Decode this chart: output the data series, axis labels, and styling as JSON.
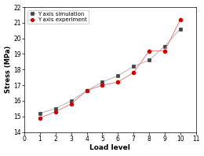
{
  "x": [
    1,
    2,
    3,
    4,
    5,
    6,
    7,
    8,
    9,
    10
  ],
  "simulation": [
    15.2,
    15.5,
    16.0,
    16.65,
    17.2,
    17.6,
    18.2,
    18.6,
    19.5,
    20.6
  ],
  "experiment": [
    14.9,
    15.3,
    15.8,
    16.65,
    17.0,
    17.2,
    17.8,
    19.2,
    19.2,
    21.2
  ],
  "sim_color": "#444444",
  "exp_color": "#cc0000",
  "line_color_sim": "#bbbbbb",
  "line_color_exp": "#e89090",
  "xlabel": "Load level",
  "ylabel": "Stress (MPa)",
  "xlim": [
    0,
    11
  ],
  "ylim": [
    14,
    22
  ],
  "yticks": [
    14,
    15,
    16,
    17,
    18,
    19,
    20,
    21,
    22
  ],
  "xticks": [
    0,
    1,
    2,
    3,
    4,
    5,
    6,
    7,
    8,
    9,
    10,
    11
  ],
  "legend_sim": "Y axis simulation",
  "legend_exp": "Y axis experiment",
  "marker_sim": "s",
  "marker_exp": "o"
}
